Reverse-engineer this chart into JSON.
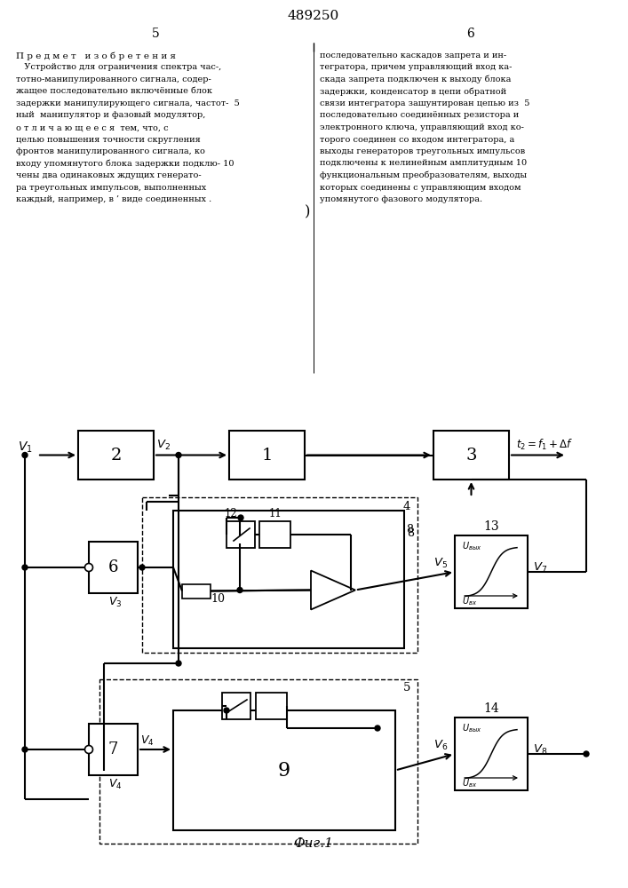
{
  "title": "489250",
  "fig_caption": "Фиг.1",
  "page_left": "5",
  "page_right": "6",
  "left_col": [
    "П р е д м е т   и з о б р е т е н и я",
    "   Устройство для ограничения спектра час-,",
    "тотно-манипулированного сигнала, содер-",
    "жащее последовательно включённые блок",
    "задержки манипулирующего сигнала, частот-  5",
    "ный  манипулятор и фазовый модулятор,",
    "о т л и ч а ю щ е е с я  тем, что, с",
    "целью повышения точности скругления",
    "фронтов манипулированного сигнала, ко",
    "входу упомянутого блока задержки подклю- 10",
    "чены два одинаковых ждущих генерато-",
    "ра треугольных импульсов, выполненных",
    "каждый, например, в ’ виде соединенных ."
  ],
  "right_col": [
    "последовательно каскадов запрета и ин-",
    "тегратора, причем управляющий вход ка-",
    "скада запрета подключен к выходу блока",
    "задержки, конденсатор в цепи обратной",
    "связи интегратора зашунтирован цепью из  5",
    "последовательно соединённых резистора и",
    "электронного ключа, управляющий вход ко-",
    "торого соединен со входом интегратора, а",
    "выходы генераторов треугольных импульсов",
    "подключены к нелинейным амплитудным 10",
    "функциональным преобразователям, выходы",
    "которых соединены с управляющим входом",
    "упомянутого фазового модулятора."
  ]
}
